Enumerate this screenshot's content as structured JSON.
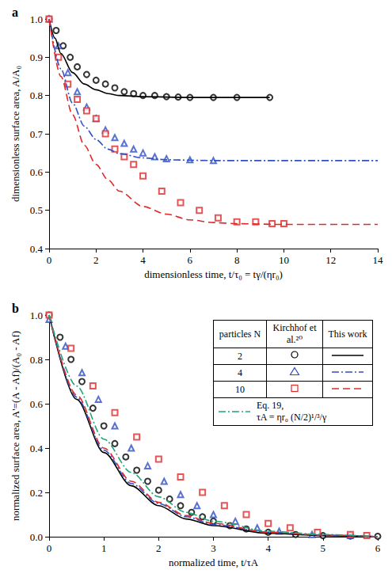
{
  "chart_data": [
    {
      "type": "line",
      "panel_label": "a",
      "x_label": "dimensionless time, t/τ₀ = tγ/(ηr₀)",
      "y_label": "dimensionless surface area, A/A₀",
      "xlim": [
        0,
        14
      ],
      "xticks": [
        0,
        2,
        4,
        6,
        8,
        10,
        12,
        14
      ],
      "ylim": [
        0.4,
        1
      ],
      "yticks": [
        0.4,
        0.5,
        0.6,
        0.7,
        0.8,
        0.9,
        {
          "value": 1,
          "label": "1.0"
        }
      ],
      "grid": false,
      "series": [
        {
          "type": "scatter",
          "marker": "circle",
          "color": "#000000",
          "x": [
            0,
            0.3,
            0.6,
            0.9,
            1.2,
            1.6,
            2,
            2.4,
            2.8,
            3.2,
            3.6,
            4,
            4.5,
            5,
            5.5,
            6,
            7,
            8,
            9.4
          ],
          "values": [
            1,
            0.97,
            0.93,
            0.9,
            0.875,
            0.855,
            0.84,
            0.83,
            0.82,
            0.81,
            0.805,
            0.8,
            0.8,
            0.797,
            0.796,
            0.795,
            0.795,
            0.795,
            0.795
          ]
        },
        {
          "type": "line",
          "line_style": "solid",
          "color": "#000000",
          "x": [
            0,
            0.25,
            0.5,
            1,
            1.5,
            2,
            2.5,
            3,
            4,
            6,
            9.4
          ],
          "values": [
            1,
            0.95,
            0.91,
            0.86,
            0.83,
            0.815,
            0.805,
            0.8,
            0.797,
            0.795,
            0.795
          ]
        },
        {
          "type": "scatter",
          "marker": "triangle",
          "color": "#2f4fc4",
          "x": [
            0,
            0.4,
            0.8,
            1.2,
            1.6,
            2,
            2.4,
            2.8,
            3.2,
            3.6,
            4,
            4.5,
            5,
            6,
            7
          ],
          "values": [
            1,
            0.93,
            0.86,
            0.81,
            0.77,
            0.74,
            0.71,
            0.69,
            0.675,
            0.66,
            0.65,
            0.64,
            0.635,
            0.632,
            0.63
          ]
        },
        {
          "type": "line",
          "line_style": "dashdot",
          "color": "#2f4fc4",
          "x": [
            0,
            0.5,
            1,
            1.5,
            2,
            2.5,
            3,
            4,
            5,
            7,
            10,
            14
          ],
          "values": [
            1,
            0.87,
            0.78,
            0.72,
            0.685,
            0.66,
            0.648,
            0.637,
            0.632,
            0.63,
            0.63,
            0.63
          ]
        },
        {
          "type": "scatter",
          "marker": "square",
          "color": "#e02a2a",
          "x": [
            0,
            0.4,
            0.8,
            1.2,
            1.6,
            2,
            2.4,
            2.8,
            3.2,
            3.6,
            4,
            4.8,
            5.6,
            6.4,
            7.2,
            8,
            8.8,
            9.5,
            10
          ],
          "values": [
            1,
            0.9,
            0.83,
            0.79,
            0.76,
            0.74,
            0.7,
            0.66,
            0.64,
            0.62,
            0.59,
            0.55,
            0.52,
            0.5,
            0.48,
            0.47,
            0.47,
            0.465,
            0.465
          ]
        },
        {
          "type": "line",
          "line_style": "dashed",
          "color": "#e02a2a",
          "x": [
            0,
            0.5,
            1,
            1.5,
            2,
            2.5,
            3,
            4,
            5,
            6,
            7,
            8,
            10,
            14
          ],
          "values": [
            1,
            0.85,
            0.75,
            0.67,
            0.62,
            0.58,
            0.55,
            0.51,
            0.49,
            0.475,
            0.468,
            0.465,
            0.463,
            0.463
          ]
        }
      ]
    },
    {
      "type": "line",
      "panel_label": "b",
      "x_label": "normalized time, t/τA",
      "y_label": "normalized surface area, A'=(A - Af)/(A₀ - Af)",
      "xlim": [
        0,
        6
      ],
      "xticks": [
        0,
        1,
        2,
        3,
        4,
        5,
        6
      ],
      "ylim": [
        0,
        1
      ],
      "yticks": [
        {
          "value": 0,
          "label": "0.0"
        },
        0.2,
        0.4,
        0.6,
        0.8,
        {
          "value": 1,
          "label": "1.0"
        }
      ],
      "grid": false,
      "legend": "upper right",
      "legend_header": "particles N",
      "series": [
        {
          "name": "Kirchhof et al.²⁰",
          "N": 2,
          "type": "scatter",
          "marker": "circle",
          "color": "#000000",
          "x": [
            0,
            0.2,
            0.4,
            0.6,
            0.8,
            1,
            1.2,
            1.4,
            1.6,
            1.8,
            2,
            2.2,
            2.4,
            2.6,
            2.8,
            3,
            3.3,
            3.6,
            4,
            4.5,
            5,
            5.5,
            6
          ],
          "values": [
            1,
            0.9,
            0.8,
            0.7,
            0.58,
            0.5,
            0.42,
            0.36,
            0.3,
            0.25,
            0.21,
            0.17,
            0.14,
            0.11,
            0.09,
            0.07,
            0.05,
            0.035,
            0.02,
            0.01,
            0.005,
            0.003,
            0.002
          ]
        },
        {
          "name": "This work",
          "N": 2,
          "type": "line",
          "line_style": "solid",
          "color": "#000000",
          "x": [
            0,
            0.5,
            1,
            1.5,
            2,
            2.5,
            3,
            4,
            5,
            6
          ],
          "values": [
            1,
            0.62,
            0.38,
            0.23,
            0.14,
            0.08,
            0.05,
            0.015,
            0.005,
            0
          ]
        },
        {
          "name": "Kirchhof et al.²⁰",
          "N": 4,
          "type": "scatter",
          "marker": "triangle",
          "color": "#2f4fc4",
          "x": [
            0,
            0.3,
            0.6,
            0.9,
            1.2,
            1.5,
            1.8,
            2.1,
            2.4,
            2.7,
            3,
            3.4,
            3.8,
            4.2,
            4.8,
            5.5
          ],
          "values": [
            0.98,
            0.86,
            0.74,
            0.62,
            0.5,
            0.4,
            0.32,
            0.25,
            0.19,
            0.14,
            0.1,
            0.07,
            0.04,
            0.025,
            0.01,
            0.005
          ]
        },
        {
          "name": "This work",
          "N": 4,
          "type": "line",
          "line_style": "dashdot",
          "color": "#2f4fc4",
          "x": [
            0,
            0.5,
            1,
            1.5,
            2,
            2.5,
            3,
            4,
            5,
            6
          ],
          "values": [
            1,
            0.63,
            0.39,
            0.24,
            0.15,
            0.09,
            0.055,
            0.02,
            0.007,
            0
          ]
        },
        {
          "name": "Kirchhof et al.²⁰",
          "N": 10,
          "type": "scatter",
          "marker": "square",
          "color": "#e02a2a",
          "x": [
            0,
            0.4,
            0.8,
            1.2,
            1.6,
            2,
            2.4,
            2.8,
            3.2,
            3.6,
            4,
            4.4,
            4.9,
            5.5,
            5.8
          ],
          "values": [
            1,
            0.85,
            0.68,
            0.56,
            0.45,
            0.35,
            0.27,
            0.2,
            0.14,
            0.1,
            0.06,
            0.04,
            0.02,
            0.01,
            0.005
          ]
        },
        {
          "name": "This work",
          "N": 10,
          "type": "line",
          "line_style": "dashed",
          "color": "#e02a2a",
          "x": [
            0,
            0.5,
            1,
            1.5,
            2,
            2.5,
            3,
            4,
            5,
            6
          ],
          "values": [
            1,
            0.64,
            0.4,
            0.25,
            0.155,
            0.095,
            0.06,
            0.02,
            0.008,
            0
          ]
        },
        {
          "name": "Eq. 19, τA = ηr₀ (N/2)¹/³/γ",
          "type": "line",
          "line_style": "dashdot",
          "color": "#1fa57a",
          "x": [
            0,
            0.5,
            1,
            1.5,
            2,
            2.5,
            3,
            4,
            5,
            6
          ],
          "values": [
            1,
            0.68,
            0.44,
            0.29,
            0.18,
            0.11,
            0.07,
            0.025,
            0.01,
            0
          ]
        }
      ]
    }
  ]
}
